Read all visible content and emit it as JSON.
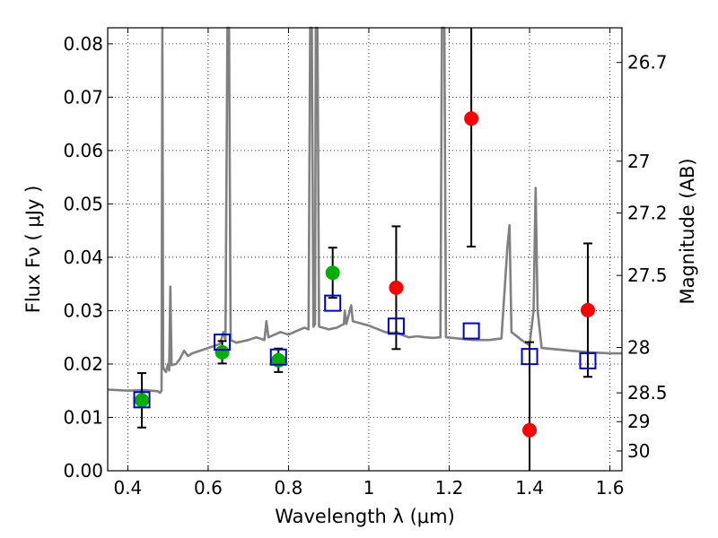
{
  "chart_data": {
    "type": "scatter",
    "xlabel": "Wavelength  λ (μm)",
    "ylabel": "Flux  Fν  ( μJy )",
    "ylabel_right": "Magnitude (AB)",
    "xlim": [
      0.35,
      1.63
    ],
    "ylim": [
      0.0,
      0.083
    ],
    "grid": true,
    "x_ticks": [
      0.4,
      0.6,
      0.8,
      1.0,
      1.2,
      1.4,
      1.6
    ],
    "x_tick_labels": [
      "0.4",
      "0.6",
      "0.8",
      "1",
      "1.2",
      "1.4",
      "1.6"
    ],
    "y_ticks": [
      0.0,
      0.01,
      0.02,
      0.03,
      0.04,
      0.05,
      0.06,
      0.07,
      0.08
    ],
    "y_tick_labels": [
      "0.00",
      "0.01",
      "0.02",
      "0.03",
      "0.04",
      "0.05",
      "0.06",
      "0.07",
      "0.08"
    ],
    "right_ticks": [
      {
        "label": "26.7",
        "flux": 0.0765
      },
      {
        "label": "27",
        "flux": 0.058
      },
      {
        "label": "27.2",
        "flux": 0.0483
      },
      {
        "label": "27.5",
        "flux": 0.0366
      },
      {
        "label": "28",
        "flux": 0.0231
      },
      {
        "label": "28.5",
        "flux": 0.0146
      },
      {
        "label": "29",
        "flux": 0.0092
      },
      {
        "label": "30",
        "flux": 0.0037
      }
    ],
    "series": [
      {
        "marker": "circle",
        "color": "#00b000",
        "points": [
          {
            "x": 0.435,
            "y": 0.0132,
            "err_low": 0.0051,
            "err_high": 0.0051
          },
          {
            "x": 0.635,
            "y": 0.0222,
            "err_low": 0.0021,
            "err_high": 0.0021
          },
          {
            "x": 0.775,
            "y": 0.0207,
            "err_low": 0.0022,
            "err_high": 0.0022
          },
          {
            "x": 0.91,
            "y": 0.0371,
            "err_low": 0.0047,
            "err_high": 0.0047
          }
        ]
      },
      {
        "marker": "circle",
        "color": "#ff0000",
        "points": [
          {
            "x": 1.068,
            "y": 0.0343,
            "err_low": 0.0115,
            "err_high": 0.0115
          },
          {
            "x": 1.255,
            "y": 0.066,
            "err_low": 0.024,
            "err_high": 0.024
          },
          {
            "x": 1.4,
            "y": 0.0076,
            "err_low": 0.0165,
            "err_high": 0.0165
          },
          {
            "x": 1.545,
            "y": 0.0301,
            "err_low": 0.0125,
            "err_high": 0.0125
          }
        ]
      },
      {
        "marker": "open-square",
        "color": "#0000cc",
        "points": [
          {
            "x": 0.435,
            "y": 0.0133
          },
          {
            "x": 0.635,
            "y": 0.0241
          },
          {
            "x": 0.775,
            "y": 0.0213
          },
          {
            "x": 0.91,
            "y": 0.0314
          },
          {
            "x": 1.068,
            "y": 0.0271
          },
          {
            "x": 1.255,
            "y": 0.0262
          },
          {
            "x": 1.4,
            "y": 0.0214
          },
          {
            "x": 1.545,
            "y": 0.0206
          }
        ]
      },
      {
        "marker": "line",
        "color": "#808080",
        "points": [
          [
            0.35,
            0.0152
          ],
          [
            0.4,
            0.015
          ],
          [
            0.44,
            0.0151
          ],
          [
            0.475,
            0.0149
          ],
          [
            0.48,
            0.0146
          ],
          [
            0.484,
            0.015
          ],
          [
            0.486,
            0.083
          ],
          [
            0.488,
            0.0195
          ],
          [
            0.49,
            0.019
          ],
          [
            0.495,
            0.0185
          ],
          [
            0.5,
            0.02
          ],
          [
            0.503,
            0.0188
          ],
          [
            0.506,
            0.0345
          ],
          [
            0.509,
            0.0198
          ],
          [
            0.52,
            0.02
          ],
          [
            0.53,
            0.021
          ],
          [
            0.54,
            0.0225
          ],
          [
            0.55,
            0.0215
          ],
          [
            0.56,
            0.022
          ],
          [
            0.58,
            0.0225
          ],
          [
            0.6,
            0.023
          ],
          [
            0.62,
            0.0235
          ],
          [
            0.63,
            0.0238
          ],
          [
            0.638,
            0.026
          ],
          [
            0.643,
            0.0245
          ],
          [
            0.648,
            0.083
          ],
          [
            0.652,
            0.083
          ],
          [
            0.656,
            0.0245
          ],
          [
            0.67,
            0.024
          ],
          [
            0.7,
            0.0245
          ],
          [
            0.72,
            0.025
          ],
          [
            0.74,
            0.0245
          ],
          [
            0.745,
            0.028
          ],
          [
            0.75,
            0.025
          ],
          [
            0.78,
            0.026
          ],
          [
            0.8,
            0.0255
          ],
          [
            0.82,
            0.0262
          ],
          [
            0.84,
            0.0268
          ],
          [
            0.85,
            0.0265
          ],
          [
            0.854,
            0.083
          ],
          [
            0.858,
            0.083
          ],
          [
            0.862,
            0.027
          ],
          [
            0.866,
            0.0275
          ],
          [
            0.868,
            0.083
          ],
          [
            0.872,
            0.083
          ],
          [
            0.876,
            0.027
          ],
          [
            0.9,
            0.0265
          ],
          [
            0.92,
            0.0268
          ],
          [
            0.938,
            0.0275
          ],
          [
            0.94,
            0.03
          ],
          [
            0.944,
            0.0275
          ],
          [
            0.956,
            0.031
          ],
          [
            0.96,
            0.028
          ],
          [
            1.0,
            0.0272
          ],
          [
            1.04,
            0.026
          ],
          [
            1.06,
            0.0258
          ],
          [
            1.07,
            0.026
          ],
          [
            1.08,
            0.0255
          ],
          [
            1.1,
            0.025
          ],
          [
            1.12,
            0.0252
          ],
          [
            1.14,
            0.025
          ],
          [
            1.16,
            0.0249
          ],
          [
            1.178,
            0.025
          ],
          [
            1.182,
            0.083
          ],
          [
            1.188,
            0.083
          ],
          [
            1.192,
            0.025
          ],
          [
            1.22,
            0.0248
          ],
          [
            1.26,
            0.0245
          ],
          [
            1.3,
            0.0245
          ],
          [
            1.33,
            0.0248
          ],
          [
            1.345,
            0.042
          ],
          [
            1.35,
            0.046
          ],
          [
            1.355,
            0.026
          ],
          [
            1.38,
            0.0245
          ],
          [
            1.4,
            0.0235
          ],
          [
            1.41,
            0.03
          ],
          [
            1.415,
            0.053
          ],
          [
            1.42,
            0.03
          ],
          [
            1.43,
            0.023
          ],
          [
            1.46,
            0.0228
          ],
          [
            1.5,
            0.0225
          ],
          [
            1.55,
            0.0222
          ],
          [
            1.6,
            0.022
          ],
          [
            1.63,
            0.022
          ]
        ]
      }
    ]
  }
}
